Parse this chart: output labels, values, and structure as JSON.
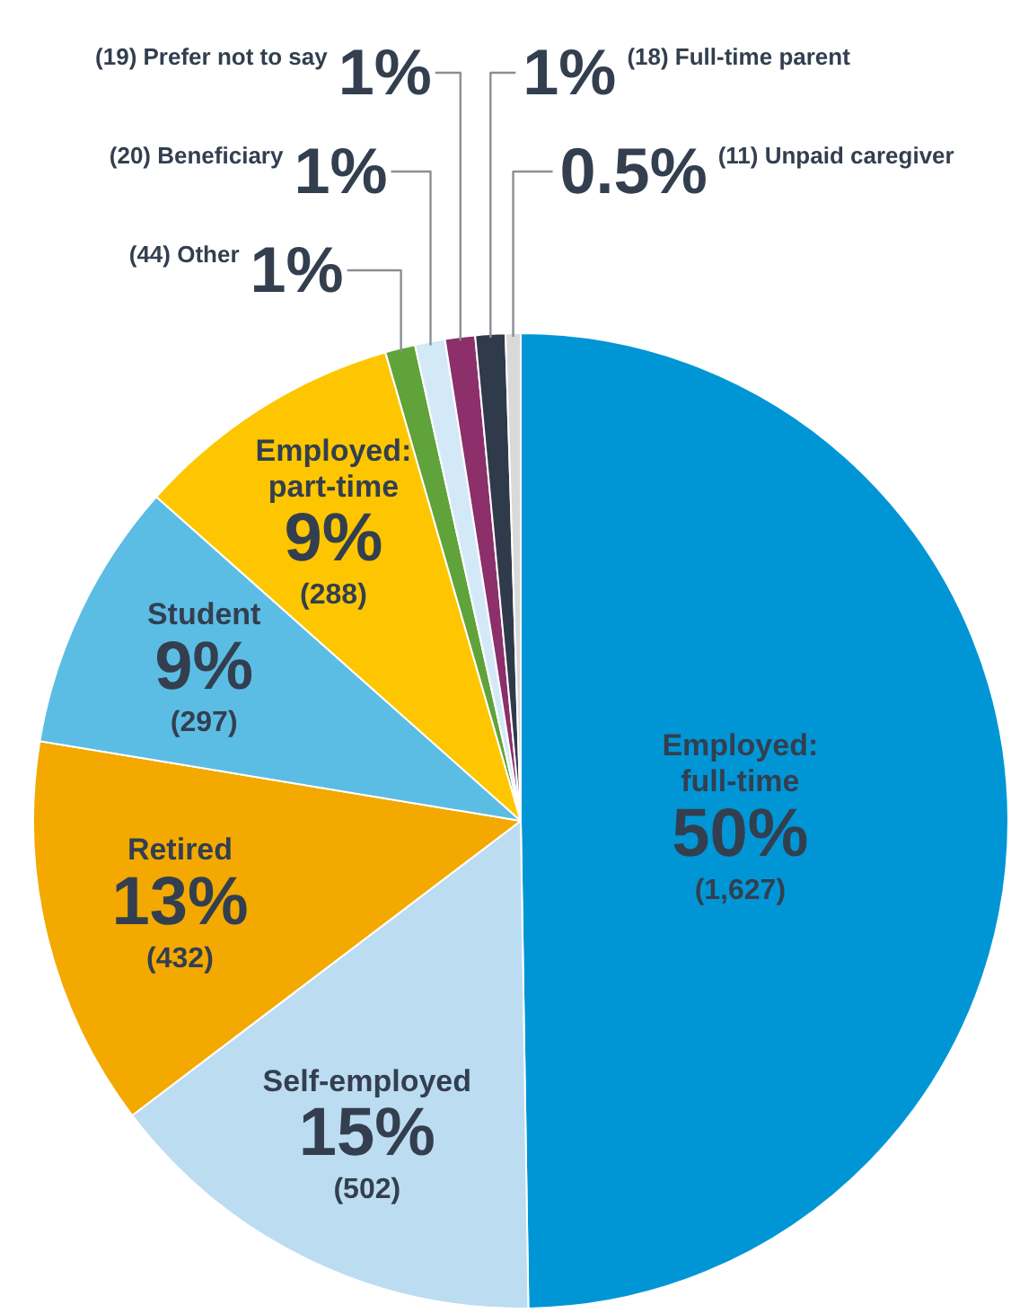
{
  "chart_data": {
    "type": "pie",
    "categories": [
      "Employed: full-time",
      "Self-employed",
      "Retired",
      "Student",
      "Employed: part-time",
      "(44) Other",
      "(20) Beneficiary",
      "(19) Prefer not to say",
      "(18) Full-time parent",
      "(11) Unpaid caregiver"
    ],
    "values": [
      50,
      15,
      13,
      9,
      9,
      1,
      1,
      1,
      1,
      0.5
    ],
    "colors": [
      "#0096d6",
      "#bcdcf2",
      "#f3a900",
      "#5bbde4",
      "#fec600",
      "#5fa33a",
      "#d4e9f8",
      "#8c2f6a",
      "#2f3a4a",
      "#d9d9d9"
    ],
    "value_labels": [
      "50%\n(1,627)",
      "15%\n(502)",
      "13%\n(432)",
      "9%\n(297)",
      "9%\n(288)",
      "1%",
      "1%",
      "1%",
      "1%",
      "0.5%"
    ],
    "legend": false
  }
}
